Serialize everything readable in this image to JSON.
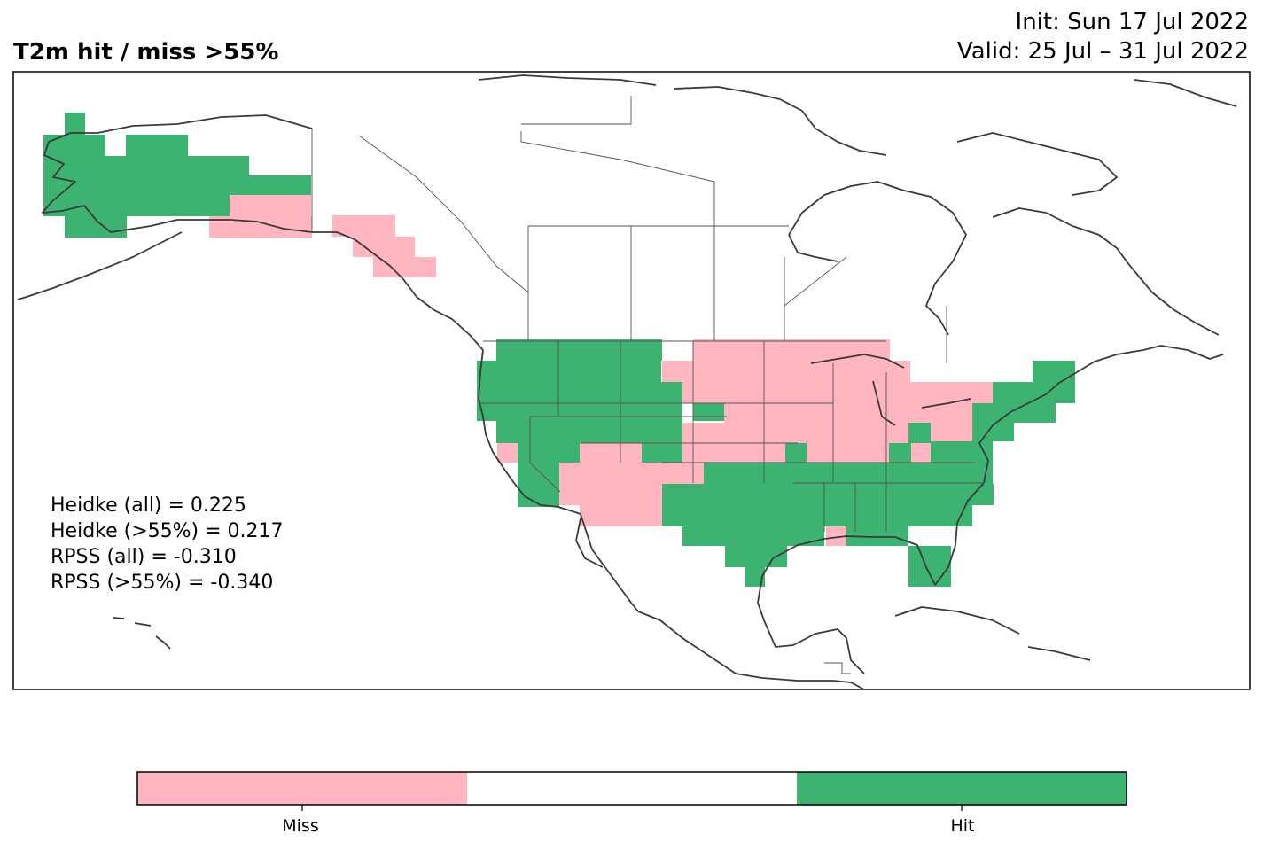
{
  "header": {
    "title": "T2m hit / miss  >55%",
    "init": "Init: Sun 17 Jul 2022",
    "valid": "Valid: 25 Jul – 31 Jul 2022"
  },
  "stats": [
    "Heidke (all) = 0.225",
    "Heidke (>55%) = 0.217",
    "RPSS (all) = -0.310",
    "RPSS (>55%) = -0.340"
  ],
  "colorbar": {
    "labels": [
      "Miss",
      "Hit"
    ],
    "colors": {
      "miss": "#ffb6c1",
      "neutral": "#ffffff",
      "hit": "#3cb371"
    }
  },
  "colors": {
    "hit": "#3cb371",
    "miss": "#ffb6c1",
    "coastline": "#3a3a3a"
  }
}
